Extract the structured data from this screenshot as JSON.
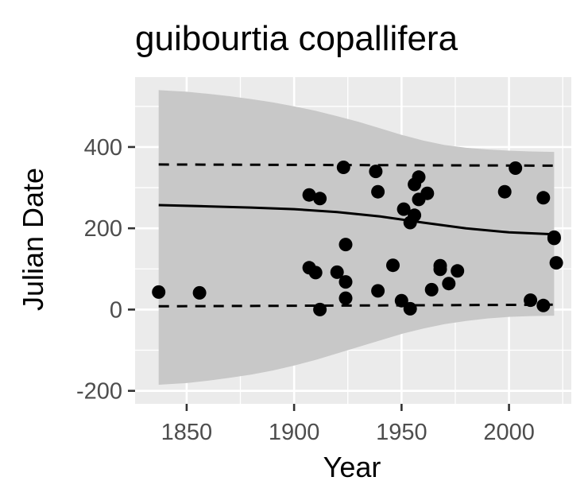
{
  "chart_data": {
    "type": "scatter",
    "title": "guibourtia copallifera",
    "xlabel": "Year",
    "ylabel": "Julian Date",
    "xlim": [
      1826,
      2029
    ],
    "ylim": [
      -232,
      572
    ],
    "x_ticks": [
      1850,
      1900,
      1950,
      2000
    ],
    "y_ticks": [
      -200,
      0,
      200,
      400
    ],
    "x_tick_labels": [
      "1850",
      "1900",
      "1950",
      "2000"
    ],
    "y_tick_labels": [
      "-200",
      "0",
      "200",
      "400"
    ],
    "grid": true,
    "legend": "none",
    "points": [
      {
        "x": 1837,
        "y": 43
      },
      {
        "x": 1856,
        "y": 41
      },
      {
        "x": 1907,
        "y": 282
      },
      {
        "x": 1907,
        "y": 103
      },
      {
        "x": 1910,
        "y": 91
      },
      {
        "x": 1912,
        "y": 273
      },
      {
        "x": 1912,
        "y": 0
      },
      {
        "x": 1920,
        "y": 92
      },
      {
        "x": 1923,
        "y": 350
      },
      {
        "x": 1924,
        "y": 160
      },
      {
        "x": 1924,
        "y": 68
      },
      {
        "x": 1924,
        "y": 28
      },
      {
        "x": 1938,
        "y": 340
      },
      {
        "x": 1939,
        "y": 290
      },
      {
        "x": 1939,
        "y": 46
      },
      {
        "x": 1946,
        "y": 109
      },
      {
        "x": 1950,
        "y": 22
      },
      {
        "x": 1951,
        "y": 247
      },
      {
        "x": 1954,
        "y": 214
      },
      {
        "x": 1954,
        "y": 2
      },
      {
        "x": 1956,
        "y": 308
      },
      {
        "x": 1956,
        "y": 232
      },
      {
        "x": 1958,
        "y": 326
      },
      {
        "x": 1958,
        "y": 271
      },
      {
        "x": 1962,
        "y": 286
      },
      {
        "x": 1964,
        "y": 49
      },
      {
        "x": 1968,
        "y": 108
      },
      {
        "x": 1968,
        "y": 99
      },
      {
        "x": 1972,
        "y": 64
      },
      {
        "x": 1976,
        "y": 95
      },
      {
        "x": 1998,
        "y": 290
      },
      {
        "x": 2003,
        "y": 348
      },
      {
        "x": 2010,
        "y": 23
      },
      {
        "x": 2016,
        "y": 275
      },
      {
        "x": 2016,
        "y": 10
      },
      {
        "x": 2021,
        "y": 178
      },
      {
        "x": 2021,
        "y": 175
      },
      {
        "x": 2022,
        "y": 115
      }
    ],
    "trend_line": {
      "x": [
        1837,
        1860,
        1880,
        1900,
        1920,
        1940,
        1960,
        1980,
        2000,
        2021
      ],
      "y": [
        257,
        254,
        251,
        247,
        240,
        229,
        214,
        200,
        190,
        185
      ]
    },
    "interval_upper": {
      "x": [
        1837,
        2021
      ],
      "y": [
        357,
        354
      ]
    },
    "interval_lower": {
      "x": [
        1837,
        2021
      ],
      "y": [
        8,
        12
      ]
    },
    "ribbon": {
      "x": [
        1837,
        1850,
        1860,
        1870,
        1880,
        1890,
        1900,
        1910,
        1920,
        1930,
        1940,
        1950,
        1960,
        1970,
        1980,
        1990,
        2000,
        2010,
        2021
      ],
      "upper": [
        540,
        536,
        531,
        525,
        518,
        510,
        500,
        489,
        476,
        462,
        446,
        430,
        416,
        405,
        398,
        394,
        391,
        389,
        388
      ],
      "lower": [
        -185,
        -181,
        -175,
        -168,
        -160,
        -150,
        -138,
        -124,
        -108,
        -92,
        -76,
        -60,
        -47,
        -36,
        -28,
        -22,
        -18,
        -16,
        -15
      ]
    }
  }
}
